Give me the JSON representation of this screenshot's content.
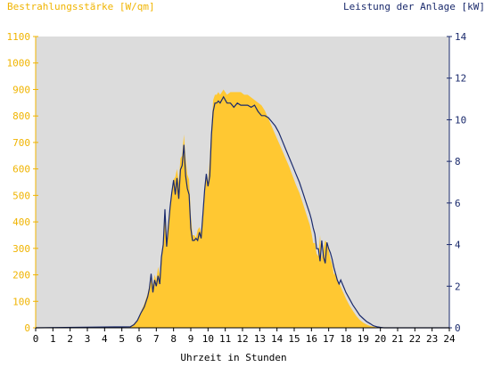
{
  "chart_data": {
    "type": "area",
    "left_axis_title": "Bestrahlungsstärke [W/qm]",
    "right_axis_title": "Leistung der Anlage [kW]",
    "xlabel": "Uhrzeit in Stunden",
    "x_ticks": [
      "0",
      "1",
      "2",
      "3",
      "4",
      "5",
      "6",
      "7",
      "8",
      "9",
      "10",
      "11",
      "12",
      "13",
      "14",
      "15",
      "16",
      "17",
      "18",
      "19",
      "20",
      "21",
      "22",
      "23",
      "24"
    ],
    "y_left_ticks": [
      "0",
      "100",
      "200",
      "300",
      "400",
      "500",
      "600",
      "700",
      "800",
      "900",
      "1000",
      "1100"
    ],
    "y_right_ticks": [
      "0",
      "2",
      "4",
      "6",
      "8",
      "10",
      "12",
      "14"
    ],
    "xlim": [
      0,
      24
    ],
    "ylim_left": [
      0,
      1100
    ],
    "ylim_right": [
      0,
      14
    ],
    "grid": false,
    "colors": {
      "background": "#dcdcdc",
      "irradiance": "#ffc832",
      "power_line": "#1a2a6c",
      "left_axis_text": "#f0b400",
      "right_axis_text": "#1a2a6c",
      "bottom_axis_text": "#000000"
    },
    "series": [
      {
        "name": "Bestrahlungsstärke [W/qm]",
        "axis": "left",
        "style": "area",
        "x": [
          0,
          5.3,
          5.5,
          5.7,
          5.9,
          6.1,
          6.3,
          6.5,
          6.6,
          6.7,
          6.8,
          6.9,
          7.0,
          7.1,
          7.2,
          7.3,
          7.4,
          7.5,
          7.6,
          7.7,
          7.8,
          7.9,
          8.0,
          8.1,
          8.2,
          8.3,
          8.4,
          8.5,
          8.6,
          8.7,
          8.8,
          8.9,
          9.0,
          9.1,
          9.2,
          9.3,
          9.4,
          9.5,
          9.6,
          9.7,
          9.8,
          9.9,
          10.0,
          10.1,
          10.2,
          10.3,
          10.4,
          10.5,
          10.6,
          10.7,
          10.9,
          11.1,
          11.3,
          11.5,
          11.7,
          11.9,
          12.1,
          12.3,
          12.5,
          12.7,
          12.9,
          13.1,
          13.3,
          13.5,
          13.7,
          13.9,
          14.1,
          14.3,
          14.5,
          14.7,
          14.9,
          15.1,
          15.3,
          15.5,
          15.7,
          15.9,
          16.0,
          16.1,
          16.2,
          16.3,
          16.4,
          16.5,
          16.6,
          16.7,
          16.8,
          16.9,
          17.0,
          17.1,
          17.2,
          17.3,
          17.4,
          17.5,
          17.6,
          17.7,
          17.8,
          17.9,
          18.0,
          18.2,
          18.4,
          18.6,
          18.8,
          19.0,
          19.2,
          19.4,
          19.6,
          19.8,
          20.0,
          20.2,
          24
        ],
        "values": [
          0,
          0,
          5,
          15,
          30,
          60,
          90,
          130,
          160,
          190,
          160,
          200,
          180,
          230,
          200,
          280,
          330,
          430,
          320,
          400,
          460,
          520,
          560,
          570,
          600,
          550,
          640,
          650,
          730,
          640,
          580,
          560,
          430,
          350,
          350,
          340,
          370,
          380,
          360,
          440,
          520,
          570,
          550,
          640,
          760,
          860,
          880,
          880,
          890,
          880,
          900,
          880,
          890,
          890,
          890,
          890,
          880,
          880,
          870,
          860,
          850,
          840,
          820,
          790,
          760,
          730,
          700,
          670,
          640,
          610,
          575,
          540,
          510,
          470,
          430,
          390,
          360,
          320,
          320,
          280,
          270,
          350,
          260,
          300,
          330,
          320,
          290,
          260,
          240,
          200,
          210,
          180,
          170,
          155,
          140,
          125,
          110,
          85,
          65,
          45,
          30,
          20,
          12,
          7,
          4,
          2,
          0,
          0,
          0
        ]
      },
      {
        "name": "Leistung der Anlage [kW]",
        "axis": "right",
        "style": "line",
        "x": [
          0,
          5.5,
          5.7,
          5.9,
          6.1,
          6.3,
          6.5,
          6.6,
          6.7,
          6.8,
          6.9,
          7.0,
          7.1,
          7.2,
          7.3,
          7.4,
          7.5,
          7.6,
          7.7,
          7.8,
          7.9,
          8.0,
          8.1,
          8.2,
          8.3,
          8.4,
          8.5,
          8.6,
          8.7,
          8.8,
          8.9,
          9.0,
          9.1,
          9.2,
          9.3,
          9.4,
          9.5,
          9.6,
          9.7,
          9.8,
          9.9,
          10.0,
          10.1,
          10.2,
          10.3,
          10.4,
          10.5,
          10.6,
          10.7,
          10.9,
          11.1,
          11.3,
          11.5,
          11.7,
          11.9,
          12.1,
          12.3,
          12.5,
          12.7,
          12.9,
          13.1,
          13.3,
          13.5,
          13.7,
          13.9,
          14.1,
          14.3,
          14.5,
          14.7,
          14.9,
          15.1,
          15.3,
          15.5,
          15.7,
          15.9,
          16.0,
          16.1,
          16.2,
          16.3,
          16.4,
          16.5,
          16.6,
          16.7,
          16.8,
          16.9,
          17.0,
          17.1,
          17.2,
          17.3,
          17.4,
          17.5,
          17.6,
          17.7,
          17.8,
          17.9,
          18.0,
          18.2,
          18.4,
          18.6,
          18.8,
          19.0,
          19.2,
          19.4,
          19.6,
          19.8,
          20.0,
          20.2,
          24
        ],
        "values": [
          0,
          0.05,
          0.15,
          0.35,
          0.7,
          1.0,
          1.5,
          1.9,
          2.6,
          1.7,
          2.3,
          2.0,
          2.5,
          2.1,
          3.4,
          4.0,
          5.7,
          3.9,
          4.9,
          5.8,
          6.5,
          7.1,
          6.4,
          7.2,
          6.2,
          7.6,
          7.8,
          8.8,
          7.3,
          6.7,
          6.4,
          4.8,
          4.2,
          4.2,
          4.3,
          4.2,
          4.6,
          4.3,
          5.4,
          6.6,
          7.4,
          6.8,
          7.3,
          9.3,
          10.4,
          10.8,
          10.8,
          10.9,
          10.8,
          11.1,
          10.8,
          10.8,
          10.6,
          10.8,
          10.7,
          10.7,
          10.7,
          10.6,
          10.7,
          10.4,
          10.2,
          10.2,
          10.1,
          9.9,
          9.7,
          9.4,
          9.0,
          8.6,
          8.2,
          7.8,
          7.4,
          7.0,
          6.5,
          6.0,
          5.5,
          5.2,
          4.8,
          4.5,
          3.8,
          3.8,
          3.2,
          4.2,
          3.4,
          3.1,
          4.1,
          3.8,
          3.6,
          3.3,
          2.9,
          2.6,
          2.3,
          2.1,
          2.3,
          2.1,
          1.9,
          1.7,
          1.4,
          1.1,
          0.85,
          0.6,
          0.45,
          0.3,
          0.2,
          0.1,
          0.05,
          0.02,
          0,
          0
        ]
      }
    ]
  }
}
